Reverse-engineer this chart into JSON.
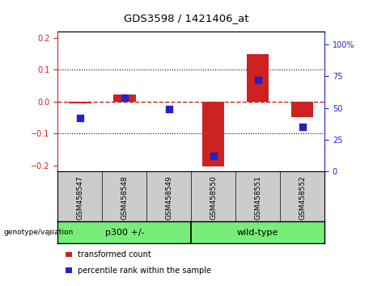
{
  "title": "GDS3598 / 1421406_at",
  "categories": [
    "GSM458547",
    "GSM458548",
    "GSM458549",
    "GSM458550",
    "GSM458551",
    "GSM458552"
  ],
  "red_bars": [
    -0.005,
    0.022,
    -0.002,
    -0.205,
    0.15,
    -0.05
  ],
  "blue_dots": [
    42,
    58,
    49,
    12,
    72,
    35
  ],
  "ylim_left": [
    -0.22,
    0.22
  ],
  "ylim_right": [
    0,
    110
  ],
  "yticks_left": [
    -0.2,
    -0.1,
    0.0,
    0.1,
    0.2
  ],
  "yticks_right": [
    0,
    25,
    50,
    75,
    100
  ],
  "hline_y": 0.0,
  "dotted_lines": [
    -0.1,
    0.1
  ],
  "groups": [
    {
      "label": "p300 +/-",
      "span": [
        0,
        2
      ]
    },
    {
      "label": "wild-type",
      "span": [
        3,
        5
      ]
    }
  ],
  "group_row_label": "genotype/variation",
  "legend_items": [
    {
      "label": "transformed count",
      "color": "#cc2222"
    },
    {
      "label": "percentile rank within the sample",
      "color": "#2222cc"
    }
  ],
  "bar_color": "#cc2222",
  "dot_color": "#2222cc",
  "axis_color_left": "#cc2222",
  "axis_color_right": "#2222cc",
  "bg_color": "#ffffff",
  "plot_bg": "#ffffff",
  "label_bg": "#cccccc",
  "group_bg": "#77ee77",
  "hline_color": "#cc2222",
  "bar_width": 0.5,
  "dot_size": 28
}
